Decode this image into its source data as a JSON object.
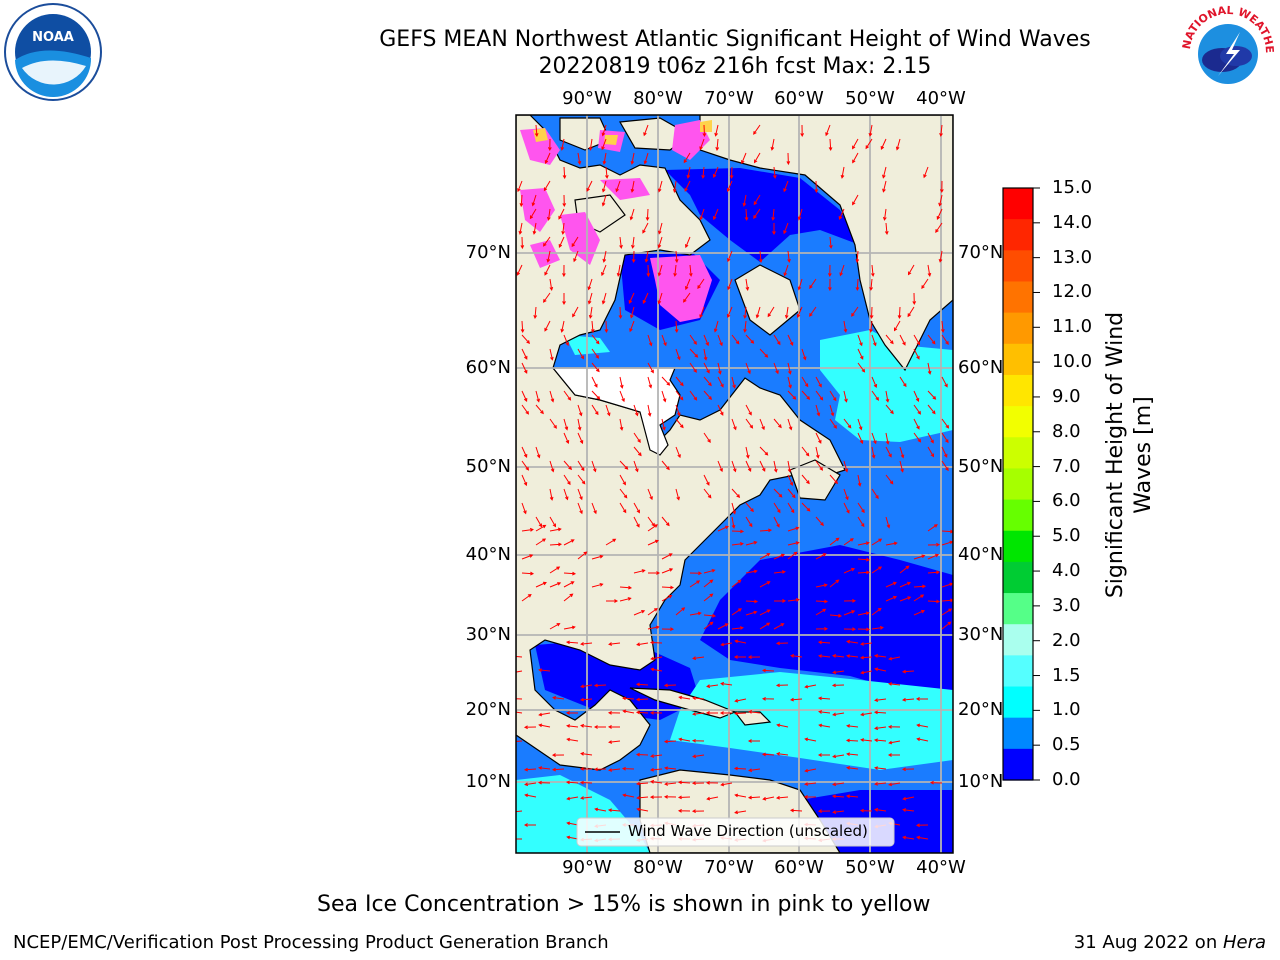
{
  "title_line1": "GEFS MEAN Northwest Atlantic Significant Height of Wind Waves",
  "title_line2": "20220819 t06z 216h fcst   Max: 2.15",
  "lon_labels": [
    "90°W",
    "80°W",
    "70°W",
    "60°W",
    "50°W",
    "40°W"
  ],
  "lat_labels": [
    "70°N",
    "60°N",
    "50°N",
    "40°N",
    "30°N",
    "20°N",
    "10°N"
  ],
  "legend_label": "Wind Wave Direction (unscaled)",
  "colorbar": {
    "label": "Significant Height of Wind Waves [m]",
    "label_line1": "Significant Height of Wind",
    "label_line2": "Waves [m]",
    "ticks": [
      "15.0",
      "14.0",
      "13.0",
      "12.0",
      "11.0",
      "10.0",
      "9.0",
      "8.0",
      "7.0",
      "6.0",
      "5.0",
      "4.0",
      "3.0",
      "2.0",
      "1.5",
      "1.0",
      "0.5",
      "0.0"
    ],
    "colors": [
      "#ff0000",
      "#ff2600",
      "#ff4d00",
      "#ff7300",
      "#ff9900",
      "#ffbf00",
      "#ffe600",
      "#f2ff00",
      "#ccff00",
      "#a6ff00",
      "#66ff00",
      "#00e600",
      "#00cc33",
      "#55ff88",
      "#aaffee",
      "#55ffff",
      "#00ffff",
      "#0088ff",
      "#0000ff"
    ]
  },
  "sea_ice_note": "Sea Ice Concentration > 15% is shown in pink to yellow",
  "footer_left": "NCEP/EMC/Verification Post Processing Product Generation Branch",
  "footer_date": "31 Aug 2022 on ",
  "footer_host": "Hera",
  "logos": {
    "left": "NOAA",
    "right": "NATIONAL WEATHER SERVICE"
  },
  "colors": {
    "land": "#f0eedb",
    "deep_blue": "#0000ff",
    "mid_blue": "#1a7cff",
    "cyan": "#33ffff",
    "arrow": "#ff0000",
    "ice_pink": "#ff55ee"
  }
}
